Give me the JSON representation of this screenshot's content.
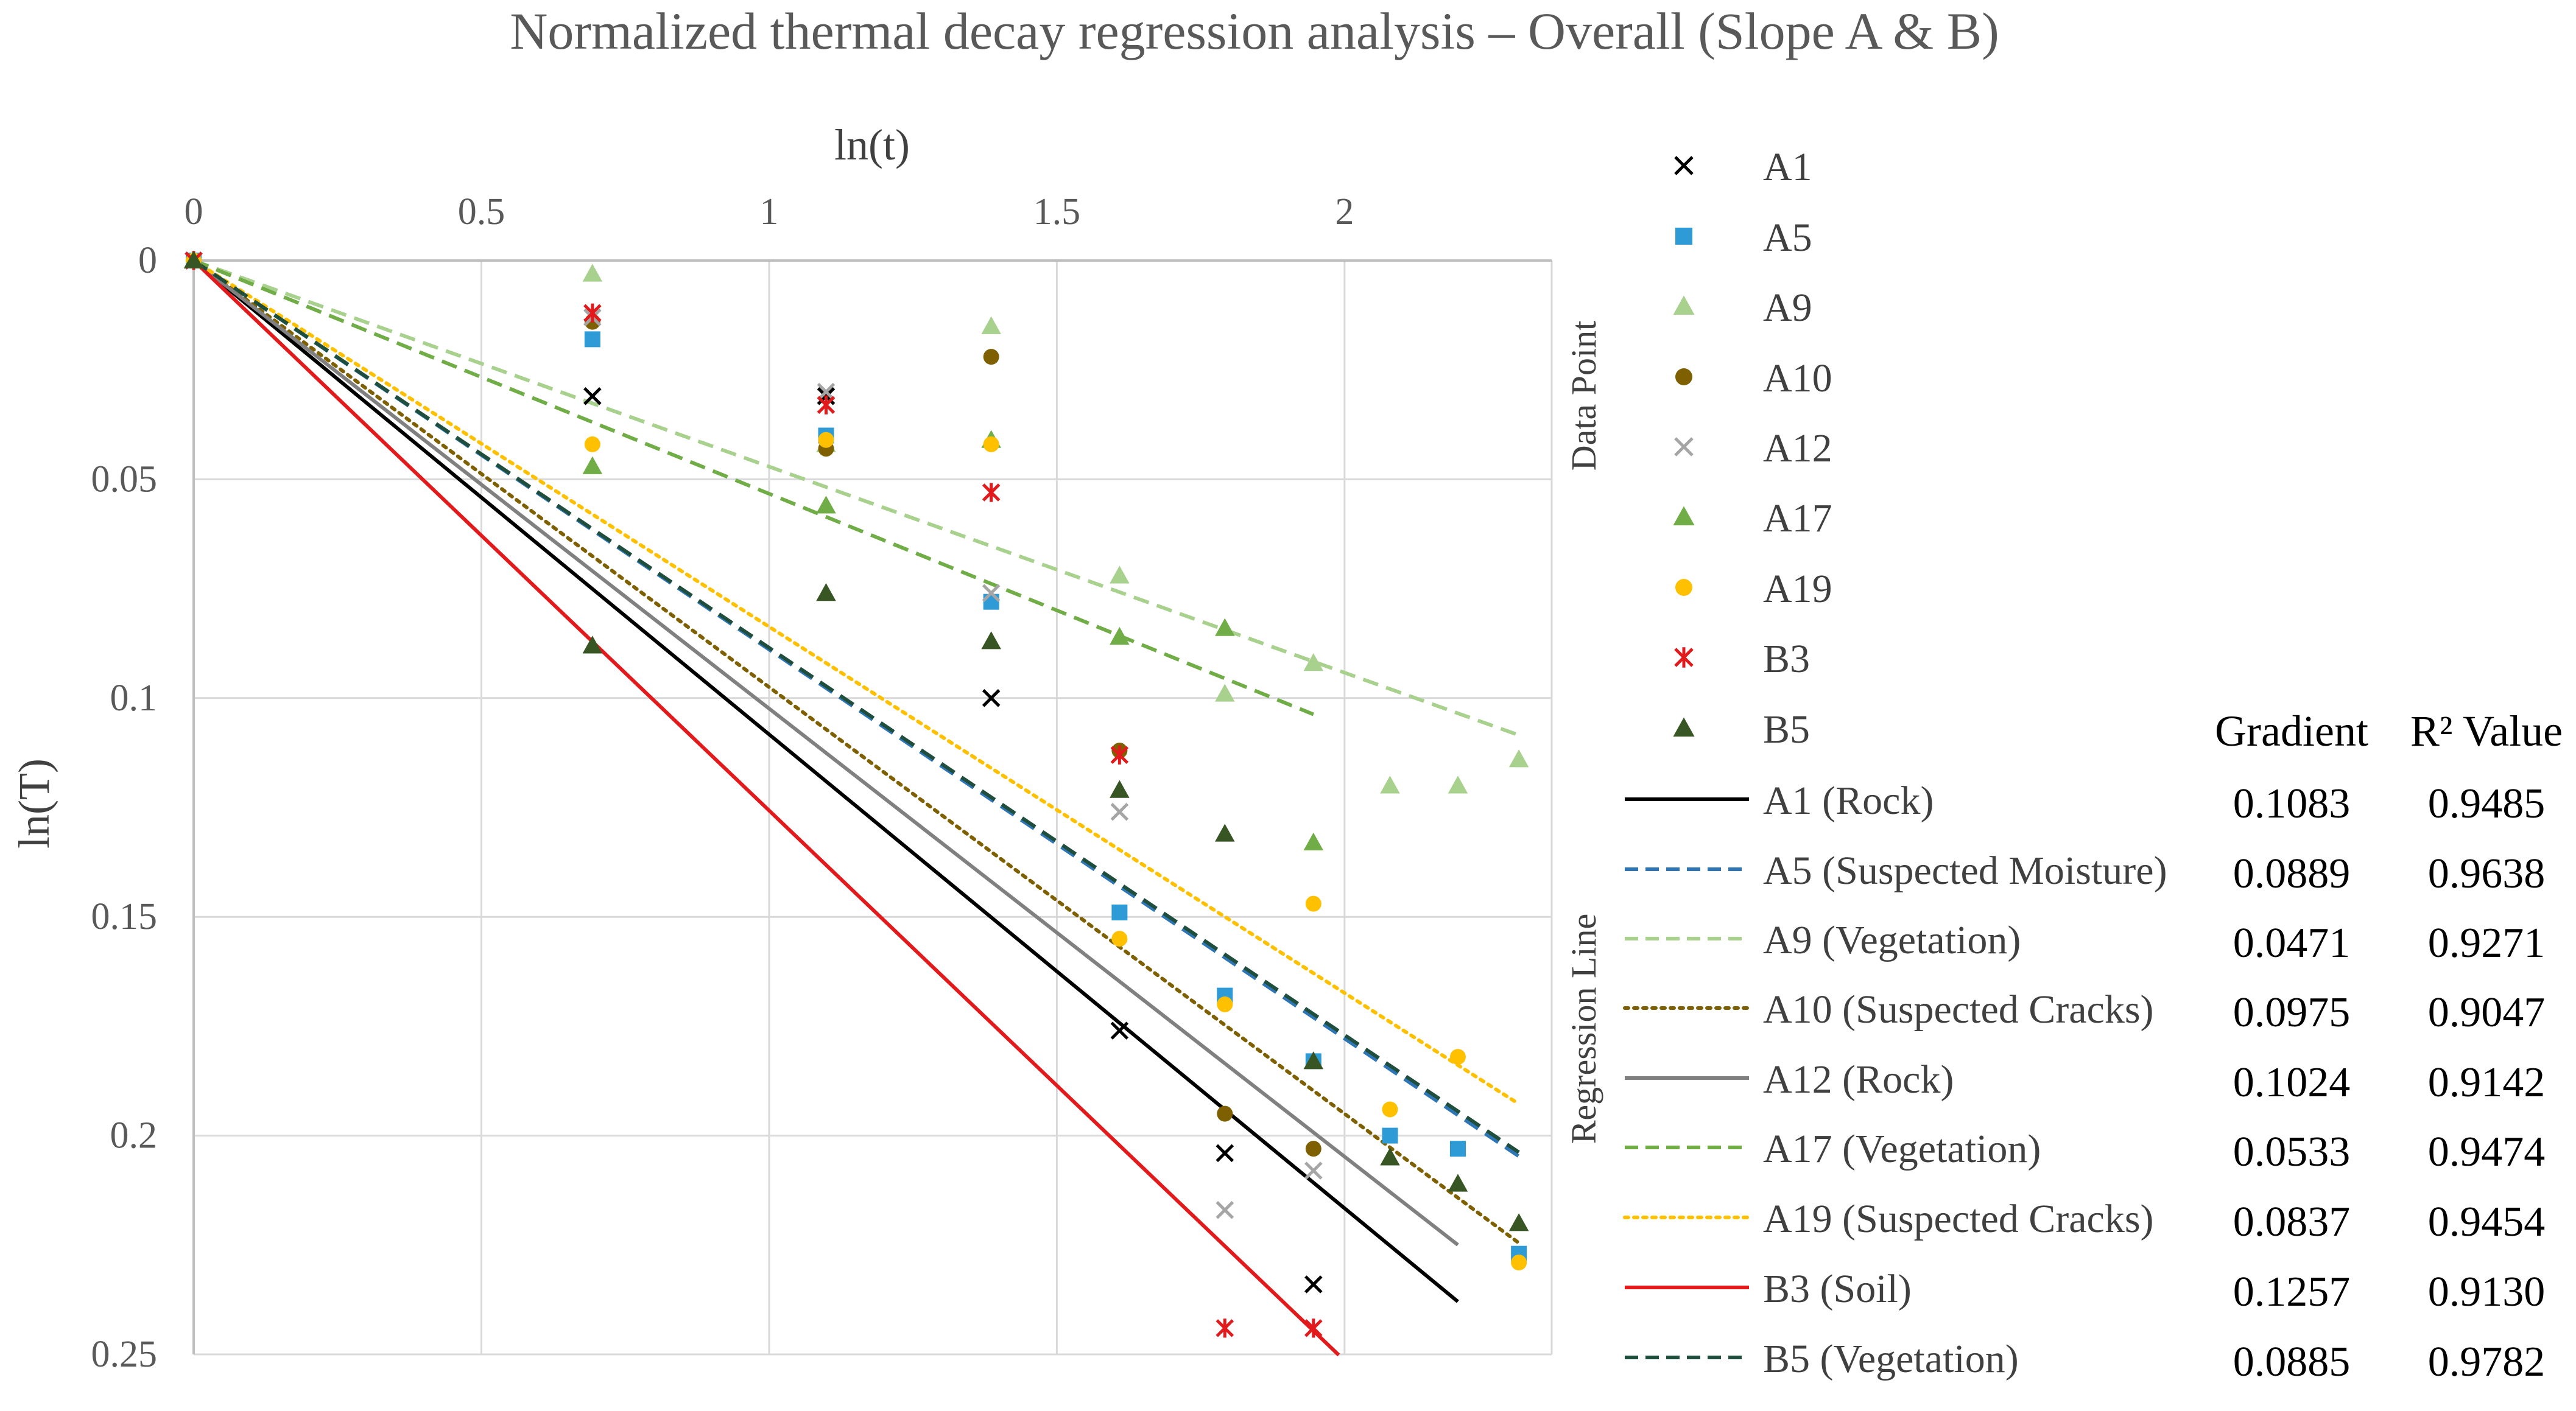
{
  "chart_data": {
    "type": "scatter",
    "title": "Normalized thermal decay regression analysis – Overall (Slope A & B)",
    "xlabel": "ln(t)",
    "ylabel": "ln(T)",
    "xlim": [
      0,
      2.36
    ],
    "ylim": [
      0,
      0.25
    ],
    "y_inverted": true,
    "x_axis_position": "top",
    "xticks": [
      0,
      0.5,
      1,
      1.5,
      2
    ],
    "xtick_labels": [
      "0",
      "0.5",
      "1",
      "1.5",
      "2"
    ],
    "yticks": [
      0,
      0.05,
      0.1,
      0.15,
      0.2,
      0.25
    ],
    "ytick_labels": [
      "0",
      "0.05",
      "0.1",
      "0.15",
      "0.2",
      "0.25"
    ],
    "grid": true,
    "legend_position": "right",
    "legend_group_labels": {
      "points": "Data Point",
      "lines": "Regression Line"
    },
    "table_headers": {
      "gradient": "Gradient",
      "r2": "R² Value"
    },
    "series": [
      {
        "name": "A1",
        "marker": "x",
        "color": "#000000",
        "x": [
          0,
          0.693,
          1.099,
          1.386,
          1.609,
          1.792,
          1.946
        ],
        "y": [
          0,
          0.031,
          0.031,
          0.1,
          0.176,
          0.204,
          0.234
        ]
      },
      {
        "name": "A5",
        "marker": "square",
        "color": "#2E9BD6",
        "x": [
          0,
          0.693,
          1.099,
          1.386,
          1.609,
          1.792,
          1.946,
          2.079,
          2.197,
          2.303
        ],
        "y": [
          0,
          0.018,
          0.04,
          0.078,
          0.149,
          0.168,
          0.183,
          0.2,
          0.203,
          0.227
        ]
      },
      {
        "name": "A9",
        "marker": "triangle",
        "color": "#A9D18E",
        "x": [
          0,
          0.693,
          1.099,
          1.386,
          1.609,
          1.792,
          1.946,
          2.079,
          2.197,
          2.303
        ],
        "y": [
          0,
          0.003,
          0.042,
          0.015,
          0.072,
          0.099,
          0.092,
          0.12,
          0.12,
          0.114
        ]
      },
      {
        "name": "A10",
        "marker": "circle",
        "color": "#7F6000",
        "x": [
          0,
          0.693,
          1.099,
          1.386,
          1.609,
          1.792,
          1.946
        ],
        "y": [
          0,
          0.014,
          0.043,
          0.022,
          0.112,
          0.195,
          0.203
        ]
      },
      {
        "name": "A12",
        "marker": "x",
        "color": "#A5A5A5",
        "x": [
          0,
          0.693,
          1.099,
          1.386,
          1.609,
          1.792,
          1.946
        ],
        "y": [
          0,
          0.013,
          0.03,
          0.076,
          0.126,
          0.217,
          0.208
        ]
      },
      {
        "name": "A17",
        "marker": "triangle",
        "color": "#70AD47",
        "x": [
          0,
          0.693,
          1.099,
          1.386,
          1.609,
          1.792,
          1.946
        ],
        "y": [
          0,
          0.047,
          0.056,
          0.041,
          0.086,
          0.084,
          0.133
        ]
      },
      {
        "name": "A19",
        "marker": "circle",
        "color": "#FFC000",
        "x": [
          0,
          0.693,
          1.099,
          1.386,
          1.609,
          1.792,
          1.946,
          2.079,
          2.197,
          2.303
        ],
        "y": [
          0,
          0.042,
          0.041,
          0.042,
          0.155,
          0.17,
          0.147,
          0.194,
          0.182,
          0.229
        ]
      },
      {
        "name": "B3",
        "marker": "asterisk",
        "color": "#E31A1C",
        "x": [
          0,
          0.693,
          1.099,
          1.386,
          1.609,
          1.792,
          1.946
        ],
        "y": [
          0,
          0.012,
          0.033,
          0.053,
          0.113,
          0.244,
          0.244
        ]
      },
      {
        "name": "B5",
        "marker": "triangle",
        "color": "#375623",
        "x": [
          0,
          0.693,
          1.099,
          1.386,
          1.609,
          1.792,
          1.946,
          2.079,
          2.197,
          2.303
        ],
        "y": [
          0,
          0.088,
          0.076,
          0.087,
          0.121,
          0.131,
          0.183,
          0.205,
          0.211,
          0.22
        ]
      }
    ],
    "regression_lines": [
      {
        "name": "A1 (Rock)",
        "gradient": "0.1083",
        "r2": "0.9485",
        "slope": 0.1083,
        "x_end": 2.197,
        "color": "#000000",
        "style": "solid"
      },
      {
        "name": "A5 (Suspected Moisture)",
        "gradient": "0.0889",
        "r2": "0.9638",
        "slope": 0.0889,
        "x_end": 2.303,
        "color": "#2E75B6",
        "style": "dash"
      },
      {
        "name": "A9 (Vegetation)",
        "gradient": "0.0471",
        "r2": "0.9271",
        "slope": 0.0471,
        "x_end": 2.303,
        "color": "#A9D18E",
        "style": "dash"
      },
      {
        "name": "A10 (Suspected Cracks)",
        "gradient": "0.0975",
        "r2": "0.9047",
        "slope": 0.0975,
        "x_end": 2.303,
        "color": "#7F6000",
        "style": "dot"
      },
      {
        "name": "A12 (Rock)",
        "gradient": "0.1024",
        "r2": "0.9142",
        "slope": 0.1024,
        "x_end": 2.197,
        "color": "#808080",
        "style": "solid"
      },
      {
        "name": "A17 (Vegetation)",
        "gradient": "0.0533",
        "r2": "0.9474",
        "slope": 0.0533,
        "x_end": 1.946,
        "color": "#70AD47",
        "style": "dash"
      },
      {
        "name": "A19 (Suspected Cracks)",
        "gradient": "0.0837",
        "r2": "0.9454",
        "slope": 0.0837,
        "x_end": 2.303,
        "color": "#FFC000",
        "style": "dot"
      },
      {
        "name": "B3 (Soil)",
        "gradient": "0.1257",
        "r2": "0.9130",
        "slope": 0.1257,
        "x_end": 1.99,
        "color": "#E31A1C",
        "style": "solid"
      },
      {
        "name": "B5 (Vegetation)",
        "gradient": "0.0885",
        "r2": "0.9782",
        "slope": 0.0885,
        "x_end": 2.303,
        "color": "#1F4E3D",
        "style": "dash"
      }
    ]
  }
}
